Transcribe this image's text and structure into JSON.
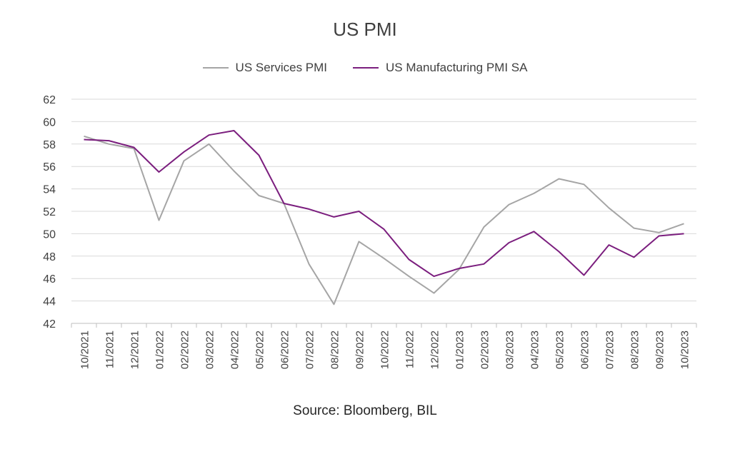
{
  "chart_data": {
    "type": "line",
    "title": "US PMI",
    "source": "Source: Bloomberg, BIL",
    "categories": [
      "10/2021",
      "11/2021",
      "12/2021",
      "01/2022",
      "02/2022",
      "03/2022",
      "04/2022",
      "05/2022",
      "06/2022",
      "07/2022",
      "08/2022",
      "09/2022",
      "10/2022",
      "11/2022",
      "12/2022",
      "01/2023",
      "02/2023",
      "03/2023",
      "04/2023",
      "05/2023",
      "06/2023",
      "07/2023",
      "08/2023",
      "09/2023",
      "10/2023"
    ],
    "ylim": [
      42,
      62
    ],
    "yticks": [
      42,
      44,
      46,
      48,
      50,
      52,
      54,
      56,
      58,
      60,
      62
    ],
    "grid": true,
    "legend_position": "top",
    "series": [
      {
        "name": "US Services PMI",
        "color": "#A5A5A5",
        "values": [
          58.7,
          58.0,
          57.6,
          51.2,
          56.5,
          58.0,
          55.6,
          53.4,
          52.7,
          47.3,
          43.7,
          49.3,
          47.8,
          46.2,
          44.7,
          46.8,
          50.6,
          52.6,
          53.6,
          54.9,
          54.4,
          52.3,
          50.5,
          50.1,
          50.9
        ]
      },
      {
        "name": "US Manufacturing PMI SA",
        "color": "#7B1E7E",
        "values": [
          58.4,
          58.3,
          57.7,
          55.5,
          57.3,
          58.8,
          59.2,
          57.0,
          52.7,
          52.2,
          51.5,
          52.0,
          50.4,
          47.7,
          46.2,
          46.9,
          47.3,
          49.2,
          50.2,
          48.4,
          46.3,
          49.0,
          47.9,
          49.8,
          50.0
        ]
      }
    ]
  }
}
